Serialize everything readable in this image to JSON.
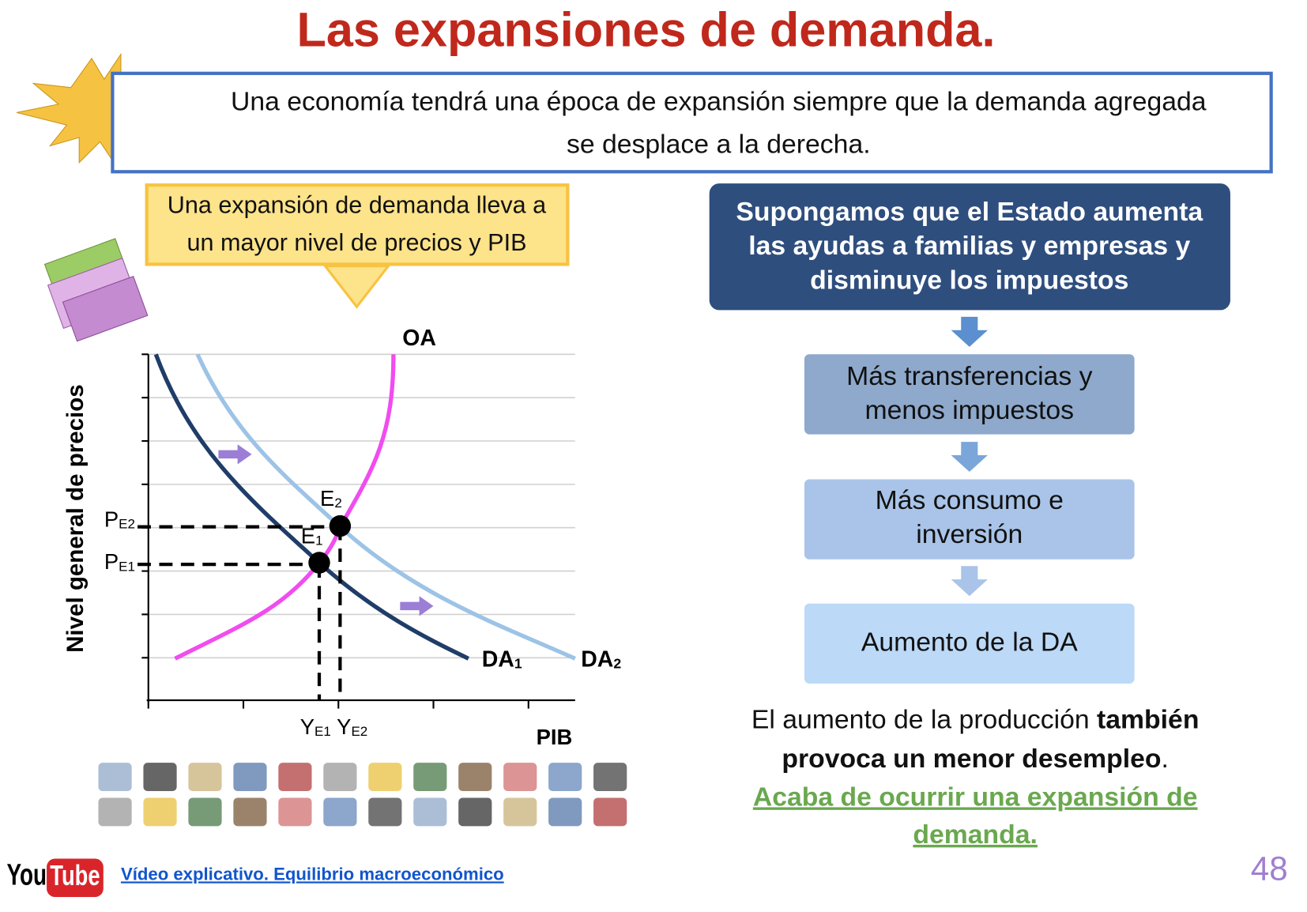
{
  "title": "Las expansiones de demanda.",
  "definition": {
    "lines": [
      "Una economía tendrá una época de expansión siempre que la demanda agregada",
      "se desplace a la derecha."
    ]
  },
  "callout": {
    "lines": [
      "Una expansión de demanda lleva a",
      "un mayor nivel de precios y PIB"
    ]
  },
  "graph": {
    "y_axis_label": "Nivel general de precios",
    "x_axis_label": "PIB",
    "supply_label": "OA",
    "demand_1": {
      "base": "DA",
      "sub": "1"
    },
    "demand_2": {
      "base": "DA",
      "sub": "2"
    },
    "e1": {
      "base": "E",
      "sub": "1"
    },
    "e2": {
      "base": "E",
      "sub": "2"
    },
    "p_e1": {
      "base": "P",
      "sub": "E1"
    },
    "p_e2": {
      "base": "P",
      "sub": "E2"
    },
    "y_e1": {
      "base": "Y",
      "sub": "E1"
    },
    "y_e2": {
      "base": "Y",
      "sub": "E2"
    }
  },
  "flow": {
    "heading": {
      "lines": [
        "Supongamos que el Estado aumenta",
        "las ayudas a familias y empresas y",
        "disminuye los impuestos"
      ]
    },
    "steps": [
      {
        "lines": [
          "Más transferencias y",
          "menos impuestos"
        ]
      },
      {
        "lines": [
          "Más consumo e",
          "inversión"
        ]
      },
      {
        "lines": [
          "Aumento de la DA"
        ]
      }
    ]
  },
  "conclusion": {
    "normal_1": "El aumento de la producción ",
    "bold_1": "también",
    "bold_2": "provoca un menor desempleo",
    "normal_2": ".",
    "link_lines": [
      "Acaba de ocurrir una expansión de",
      "demanda."
    ]
  },
  "footer": {
    "logo_you": "You",
    "logo_tube": "Tube",
    "video_link": "Vídeo explicativo. Equilibrio macroeconómico",
    "page_number": "48"
  }
}
